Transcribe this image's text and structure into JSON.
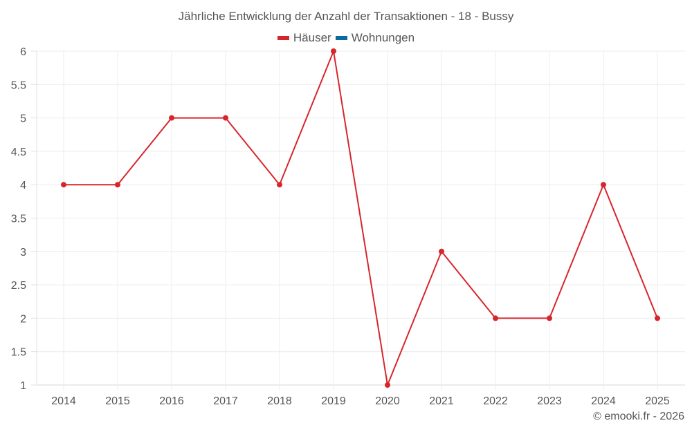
{
  "chart_data": {
    "type": "line",
    "title": "Jährliche Entwicklung der Anzahl der Transaktionen - 18 - Bussy",
    "xlabel": "",
    "ylabel": "",
    "categories": [
      "2014",
      "2015",
      "2016",
      "2017",
      "2018",
      "2019",
      "2020",
      "2021",
      "2022",
      "2023",
      "2024",
      "2025"
    ],
    "series": [
      {
        "name": "Häuser",
        "color": "#d7262b",
        "values": [
          4,
          4,
          5,
          5,
          4,
          6,
          1,
          3,
          2,
          2,
          4,
          2
        ]
      },
      {
        "name": "Wohnungen",
        "color": "#0b6aa2",
        "values": []
      }
    ],
    "ylim": [
      1,
      6
    ],
    "yticks": [
      "1",
      "1.5",
      "2",
      "2.5",
      "3",
      "3.5",
      "4",
      "4.5",
      "5",
      "5.5",
      "6"
    ],
    "grid": true,
    "legend_position": "top"
  },
  "legend": {
    "items": [
      {
        "label": "Häuser",
        "color": "#d7262b"
      },
      {
        "label": "Wohnungen",
        "color": "#0b6aa2"
      }
    ]
  },
  "footer": {
    "credit": "© emooki.fr - 2026"
  }
}
